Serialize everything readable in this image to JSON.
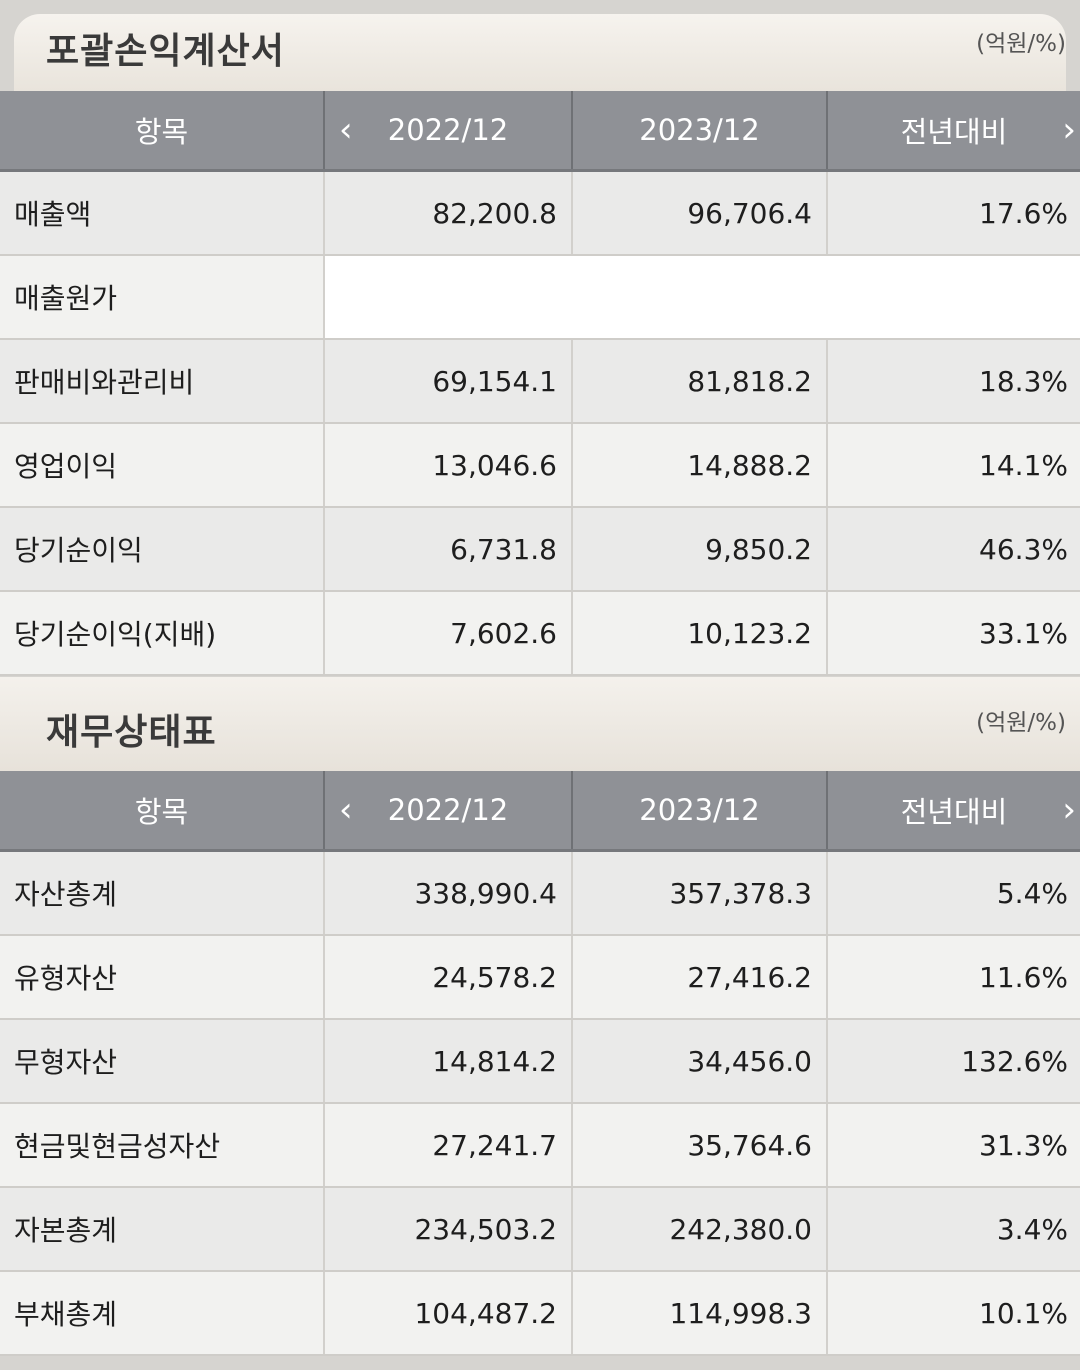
{
  "income": {
    "title": "포괄손익계산서",
    "unit": "(억원/%)",
    "header": {
      "item": "항목",
      "col1": "2022/12",
      "col2": "2023/12",
      "col3": "전년대비"
    },
    "rows": [
      {
        "label": "매출액",
        "v1": "82,200.8",
        "v2": "96,706.4",
        "v3": "17.6%"
      },
      {
        "label": "매출원가",
        "v1": "",
        "v2": "",
        "v3": ""
      },
      {
        "label": "판매비와관리비",
        "v1": "69,154.1",
        "v2": "81,818.2",
        "v3": "18.3%"
      },
      {
        "label": "영업이익",
        "v1": "13,046.6",
        "v2": "14,888.2",
        "v3": "14.1%"
      },
      {
        "label": "당기순이익",
        "v1": "6,731.8",
        "v2": "9,850.2",
        "v3": "46.3%"
      },
      {
        "label": "당기순이익(지배)",
        "v1": "7,602.6",
        "v2": "10,123.2",
        "v3": "33.1%"
      }
    ]
  },
  "balance": {
    "title": "재무상태표",
    "unit": "(억원/%)",
    "header": {
      "item": "항목",
      "col1": "2022/12",
      "col2": "2023/12",
      "col3": "전년대비"
    },
    "rows": [
      {
        "label": "자산총계",
        "v1": "338,990.4",
        "v2": "357,378.3",
        "v3": "5.4%"
      },
      {
        "label": "유형자산",
        "v1": "24,578.2",
        "v2": "27,416.2",
        "v3": "11.6%"
      },
      {
        "label": "무형자산",
        "v1": "14,814.2",
        "v2": "34,456.0",
        "v3": "132.6%"
      },
      {
        "label": "현금및현금성자산",
        "v1": "27,241.7",
        "v2": "35,764.6",
        "v3": "31.3%"
      },
      {
        "label": "자본총계",
        "v1": "234,503.2",
        "v2": "242,380.0",
        "v3": "3.4%"
      },
      {
        "label": "부채총계",
        "v1": "104,487.2",
        "v2": "114,998.3",
        "v3": "10.1%"
      }
    ]
  },
  "icons": {
    "prev": "chevron-left-icon",
    "next": "chevron-right-icon"
  }
}
